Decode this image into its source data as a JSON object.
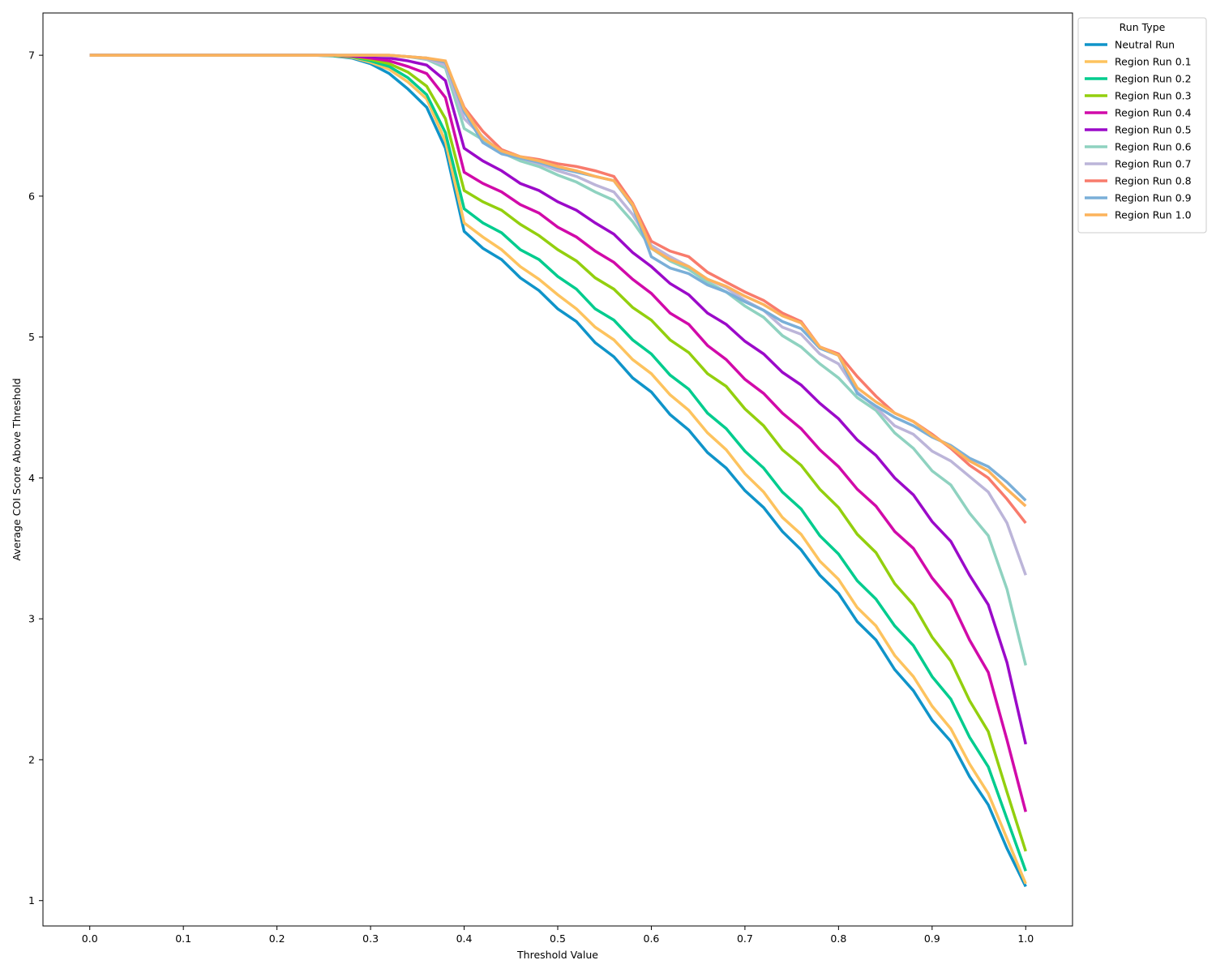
{
  "chart_data": {
    "type": "line",
    "xlabel": "Threshold Value",
    "ylabel": "Average COI Score Above Threshold",
    "xlim": [
      -0.05,
      1.05
    ],
    "ylim": [
      0.82,
      7.3
    ],
    "xticks": [
      "0.0",
      "0.1",
      "0.2",
      "0.3",
      "0.4",
      "0.5",
      "0.6",
      "0.7",
      "0.8",
      "0.9",
      "1.0"
    ],
    "yticks": [
      "1",
      "2",
      "3",
      "4",
      "5",
      "6",
      "7"
    ],
    "grid": false,
    "legend": {
      "title": "Run Type",
      "placement": "upper right, outside plot"
    },
    "x": [
      0.0,
      0.02,
      0.04,
      0.06,
      0.08,
      0.1,
      0.12,
      0.14,
      0.16,
      0.18,
      0.2,
      0.22,
      0.24,
      0.26,
      0.28,
      0.3,
      0.32,
      0.34,
      0.36,
      0.38,
      0.4,
      0.42,
      0.44,
      0.46,
      0.48,
      0.5,
      0.52,
      0.54,
      0.56,
      0.58,
      0.6,
      0.62,
      0.64,
      0.66,
      0.68,
      0.7,
      0.72,
      0.74,
      0.76,
      0.78,
      0.8,
      0.82,
      0.84,
      0.86,
      0.88,
      0.9,
      0.92,
      0.94,
      0.96,
      0.98,
      1.0
    ],
    "series": [
      {
        "name": "Neutral Run",
        "color": "#0f94c9",
        "values": [
          7,
          7,
          7,
          7,
          7,
          7,
          7,
          7,
          7,
          7,
          7,
          7,
          7,
          6.995,
          6.98,
          6.94,
          6.87,
          6.76,
          6.63,
          6.34,
          5.75,
          5.63,
          5.55,
          5.42,
          5.33,
          5.2,
          5.11,
          4.96,
          4.86,
          4.71,
          4.61,
          4.45,
          4.34,
          4.18,
          4.07,
          3.91,
          3.79,
          3.62,
          3.49,
          3.31,
          3.18,
          2.98,
          2.85,
          2.64,
          2.49,
          2.28,
          2.13,
          1.88,
          1.68,
          1.37,
          1.1
        ]
      },
      {
        "name": "Region Run 0.1",
        "color": "#fdc35e",
        "values": [
          7,
          7,
          7,
          7,
          7,
          7,
          7,
          7,
          7,
          7,
          7,
          7,
          7,
          6.997,
          6.985,
          6.95,
          6.9,
          6.81,
          6.69,
          6.39,
          5.81,
          5.71,
          5.62,
          5.5,
          5.41,
          5.3,
          5.2,
          5.07,
          4.98,
          4.84,
          4.74,
          4.59,
          4.48,
          4.32,
          4.2,
          4.03,
          3.9,
          3.72,
          3.6,
          3.41,
          3.28,
          3.08,
          2.95,
          2.74,
          2.59,
          2.38,
          2.22,
          1.97,
          1.76,
          1.44,
          1.12
        ]
      },
      {
        "name": "Region Run 0.2",
        "color": "#00cc8e",
        "values": [
          7,
          7,
          7,
          7,
          7,
          7,
          7,
          7,
          7,
          7,
          7,
          7,
          7,
          6.998,
          6.99,
          6.96,
          6.92,
          6.84,
          6.72,
          6.45,
          5.91,
          5.81,
          5.74,
          5.62,
          5.55,
          5.43,
          5.34,
          5.2,
          5.12,
          4.98,
          4.88,
          4.73,
          4.63,
          4.46,
          4.35,
          4.19,
          4.07,
          3.9,
          3.78,
          3.59,
          3.46,
          3.27,
          3.14,
          2.95,
          2.81,
          2.59,
          2.43,
          2.16,
          1.95,
          1.58,
          1.21
        ]
      },
      {
        "name": "Region Run 0.3",
        "color": "#93cf0e",
        "values": [
          7,
          7,
          7,
          7,
          7,
          7,
          7,
          7,
          7,
          7,
          7,
          7,
          7,
          6.999,
          6.992,
          6.97,
          6.94,
          6.88,
          6.78,
          6.55,
          6.04,
          5.96,
          5.9,
          5.8,
          5.72,
          5.62,
          5.54,
          5.42,
          5.34,
          5.21,
          5.12,
          4.98,
          4.89,
          4.74,
          4.65,
          4.49,
          4.37,
          4.2,
          4.09,
          3.92,
          3.79,
          3.6,
          3.47,
          3.25,
          3.1,
          2.87,
          2.7,
          2.42,
          2.2,
          1.77,
          1.35
        ]
      },
      {
        "name": "Region Run 0.4",
        "color": "#d10aa9",
        "values": [
          7,
          7,
          7,
          7,
          7,
          7,
          7,
          7,
          7,
          7,
          7,
          7,
          7,
          7,
          6.995,
          6.98,
          6.96,
          6.92,
          6.87,
          6.7,
          6.17,
          6.09,
          6.03,
          5.94,
          5.88,
          5.78,
          5.71,
          5.61,
          5.53,
          5.41,
          5.31,
          5.17,
          5.09,
          4.94,
          4.84,
          4.7,
          4.6,
          4.46,
          4.35,
          4.2,
          4.08,
          3.92,
          3.8,
          3.62,
          3.5,
          3.29,
          3.13,
          2.85,
          2.62,
          2.14,
          1.63
        ]
      },
      {
        "name": "Region Run 0.5",
        "color": "#9b0ac9",
        "values": [
          7,
          7,
          7,
          7,
          7,
          7,
          7,
          7,
          7,
          7,
          7,
          7,
          7,
          7,
          6.997,
          6.99,
          6.98,
          6.96,
          6.93,
          6.82,
          6.34,
          6.25,
          6.18,
          6.09,
          6.04,
          5.96,
          5.9,
          5.81,
          5.73,
          5.6,
          5.5,
          5.38,
          5.3,
          5.17,
          5.09,
          4.97,
          4.88,
          4.75,
          4.66,
          4.53,
          4.42,
          4.27,
          4.16,
          4.0,
          3.88,
          3.69,
          3.55,
          3.31,
          3.1,
          2.69,
          2.11
        ]
      },
      {
        "name": "Region Run 0.6",
        "color": "#8fd2c0",
        "values": [
          7,
          7,
          7,
          7,
          7,
          7,
          7,
          7,
          7,
          7,
          7,
          7,
          7,
          7,
          7,
          7,
          6.997,
          6.99,
          6.97,
          6.91,
          6.48,
          6.4,
          6.31,
          6.25,
          6.21,
          6.15,
          6.1,
          6.03,
          5.97,
          5.82,
          5.63,
          5.54,
          5.48,
          5.39,
          5.32,
          5.22,
          5.14,
          5.01,
          4.93,
          4.81,
          4.71,
          4.57,
          4.48,
          4.32,
          4.21,
          4.05,
          3.95,
          3.75,
          3.59,
          3.21,
          2.67
        ]
      },
      {
        "name": "Region Run 0.7",
        "color": "#bcb5d9",
        "values": [
          7,
          7,
          7,
          7,
          7,
          7,
          7,
          7,
          7,
          7,
          7,
          7,
          7,
          7,
          7,
          7,
          6.997,
          6.99,
          6.975,
          6.93,
          6.55,
          6.42,
          6.31,
          6.27,
          6.23,
          6.18,
          6.14,
          6.08,
          6.03,
          5.87,
          5.65,
          5.57,
          5.5,
          5.41,
          5.35,
          5.26,
          5.19,
          5.07,
          5.02,
          4.88,
          4.81,
          4.61,
          4.5,
          4.37,
          4.31,
          4.19,
          4.12,
          4.01,
          3.9,
          3.68,
          3.31
        ]
      },
      {
        "name": "Region Run 0.8",
        "color": "#f87b6c",
        "values": [
          7,
          7,
          7,
          7,
          7,
          7,
          7,
          7,
          7,
          7,
          7,
          7,
          7,
          7,
          7,
          7,
          7,
          6.99,
          6.98,
          6.95,
          6.63,
          6.46,
          6.33,
          6.28,
          6.26,
          6.23,
          6.21,
          6.18,
          6.14,
          5.95,
          5.68,
          5.61,
          5.57,
          5.46,
          5.39,
          5.32,
          5.26,
          5.17,
          5.11,
          4.93,
          4.88,
          4.72,
          4.58,
          4.46,
          4.4,
          4.31,
          4.21,
          4.09,
          4.0,
          3.85,
          3.68
        ]
      },
      {
        "name": "Region Run 0.9",
        "color": "#7aafd8",
        "values": [
          7,
          7,
          7,
          7,
          7,
          7,
          7,
          7,
          7,
          7,
          7,
          7,
          7,
          7,
          7,
          7,
          7,
          6.99,
          6.98,
          6.95,
          6.6,
          6.38,
          6.3,
          6.27,
          6.24,
          6.2,
          6.17,
          6.14,
          6.11,
          5.93,
          5.57,
          5.49,
          5.45,
          5.37,
          5.32,
          5.25,
          5.19,
          5.11,
          5.06,
          4.92,
          4.87,
          4.6,
          4.51,
          4.43,
          4.37,
          4.29,
          4.23,
          4.14,
          4.08,
          3.97,
          3.84
        ]
      },
      {
        "name": "Region Run 1.0",
        "color": "#fcb35c",
        "values": [
          7,
          7,
          7,
          7,
          7,
          7,
          7,
          7,
          7,
          7,
          7,
          7,
          7,
          7,
          7,
          7,
          7,
          6.99,
          6.98,
          6.96,
          6.62,
          6.41,
          6.32,
          6.28,
          6.25,
          6.21,
          6.18,
          6.14,
          6.11,
          5.94,
          5.63,
          5.55,
          5.5,
          5.41,
          5.36,
          5.29,
          5.23,
          5.15,
          5.1,
          4.93,
          4.87,
          4.64,
          4.54,
          4.46,
          4.4,
          4.3,
          4.22,
          4.12,
          4.05,
          3.92,
          3.8
        ]
      }
    ]
  }
}
